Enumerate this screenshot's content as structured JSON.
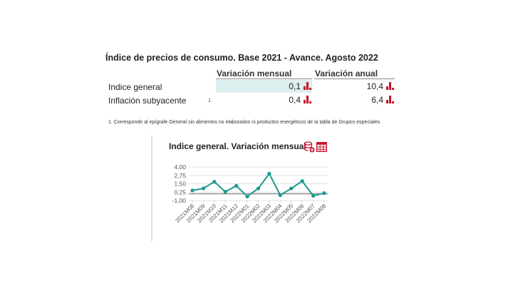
{
  "page": {
    "title": "Índice de precios de consumo. Base 2021 - Avance. Agosto 2022"
  },
  "table": {
    "columns": [
      "Variación mensual",
      "Variación anual"
    ],
    "rows": [
      {
        "label": "Indice general",
        "note": "",
        "mensual": "0,1",
        "anual": "10,4"
      },
      {
        "label": "Inflación subyacente",
        "note": "1",
        "mensual": "0,4",
        "anual": "6,4"
      }
    ],
    "chart_icon": "bar-chart-icon"
  },
  "footnote": "1. Corresponde al epígrafe General sin alimentos no elaborados ni productos energéticos de la tabla de Grupos especiales",
  "chart_panel": {
    "title": "Indice general. Variación mensual",
    "icons": [
      "database-add-icon",
      "table-icon"
    ],
    "accent_color": "#1a9a8c",
    "icon_color": "#c8102e"
  },
  "chart_data": {
    "type": "line",
    "title": "Indice general. Variación mensual",
    "xlabel": "",
    "ylabel": "",
    "categories": [
      "2021M08",
      "2021M09",
      "2021M10",
      "2021M11",
      "2021M12",
      "2022M01",
      "2022M02",
      "2022M03",
      "2022M04",
      "2022M05",
      "2022M06",
      "2022M07",
      "2022M08"
    ],
    "values": [
      0.5,
      0.8,
      1.8,
      0.3,
      1.2,
      -0.4,
      0.8,
      3.0,
      -0.2,
      0.8,
      1.9,
      -0.3,
      0.1
    ],
    "yticks": [
      "4,00",
      "2,75",
      "1,50",
      "0,25",
      "-1,00"
    ],
    "ylim": [
      -1.0,
      4.0
    ],
    "grid": true,
    "legend": "none"
  }
}
